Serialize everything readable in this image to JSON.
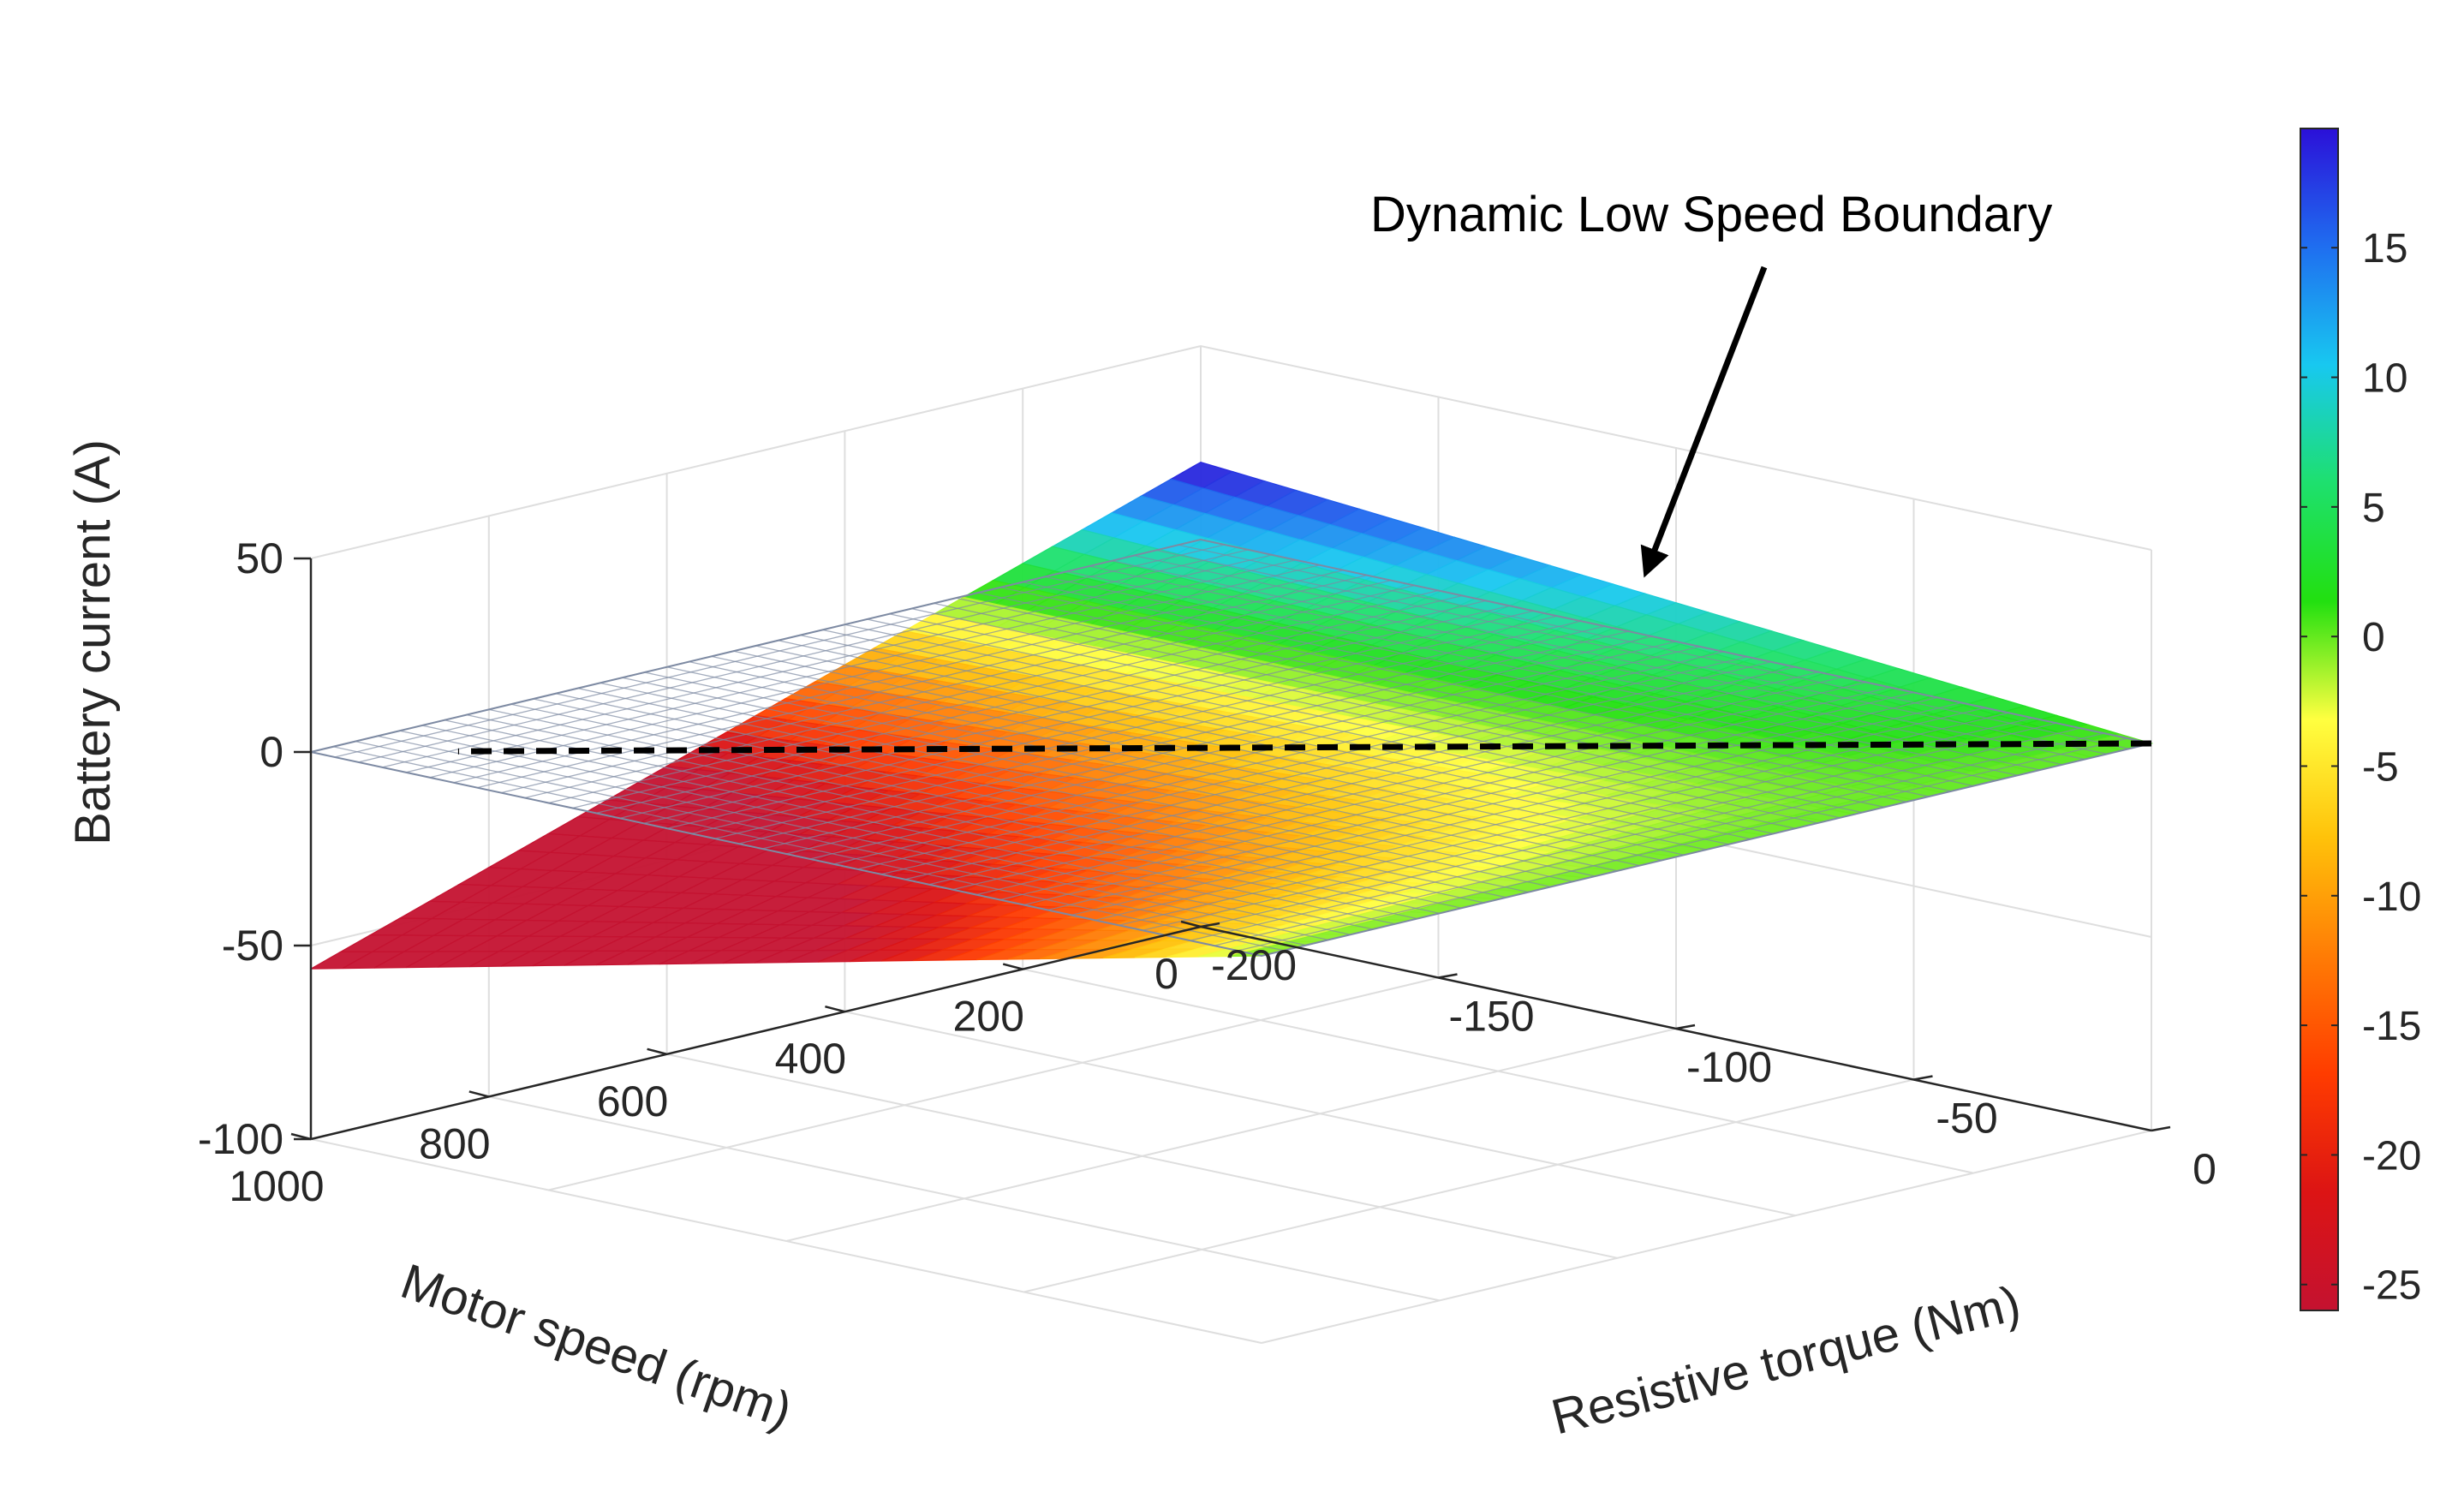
{
  "chart_data": {
    "type": "surface",
    "title": "",
    "xlabel": "Motor speed (rpm)",
    "ylabel": "Resistive torque (Nm)",
    "zlabel": "Battery current (A)",
    "xlim": [
      0,
      1000
    ],
    "ylim": [
      -200,
      0
    ],
    "zlim": [
      -100,
      50
    ],
    "x_ticks": [
      0,
      200,
      400,
      600,
      800,
      1000
    ],
    "x_tick_labels": [
      "0",
      "200",
      "400",
      "600",
      "800",
      "1000"
    ],
    "y_ticks": [
      -200,
      -150,
      -100,
      -50,
      0
    ],
    "y_tick_labels": [
      "-200",
      "-150",
      "-100",
      "-50",
      "0"
    ],
    "z_ticks": [
      -100,
      -50,
      0,
      50
    ],
    "z_tick_labels": [
      "-100",
      "-50",
      "0",
      "50"
    ],
    "grid": true,
    "surfaces": [
      {
        "name": "Battery current surface",
        "corner_values": {
          "speed_0_torque_0": 0,
          "speed_1000_torque_0": 0,
          "speed_0_torque_-200": 20,
          "speed_1000_torque_-200": -56
        }
      },
      {
        "name": "Zero-current reference plane",
        "z": 0
      }
    ],
    "boundary": {
      "name": "Dynamic Low Speed Boundary",
      "style": "dashed",
      "points": [
        {
          "speed": 0,
          "torque": 0,
          "current": 0
        },
        {
          "speed": 500,
          "torque": -100,
          "current": 0
        },
        {
          "speed": 750,
          "torque": -150,
          "current": 0
        },
        {
          "speed": 920,
          "torque": -184,
          "current": 0
        }
      ]
    },
    "annotations": [
      {
        "text": "Dynamic Low Speed Boundary",
        "points_to": "boundary"
      }
    ],
    "colorbar": {
      "range": [
        -26,
        19.6
      ],
      "ticks": [
        15,
        10,
        5,
        0,
        -5,
        -10,
        -15,
        -20,
        -25
      ],
      "tick_labels": [
        "15",
        "10",
        "5",
        "0",
        "-5",
        "-10",
        "-15",
        "-20",
        "-25"
      ],
      "colors": [
        "#2b10d8",
        "#1f6ef0",
        "#18c8f0",
        "#1ee06e",
        "#22e010",
        "#ffff40",
        "#ffc20a",
        "#ff7c05",
        "#ff3c00",
        "#dc1414",
        "#c41230"
      ]
    }
  }
}
